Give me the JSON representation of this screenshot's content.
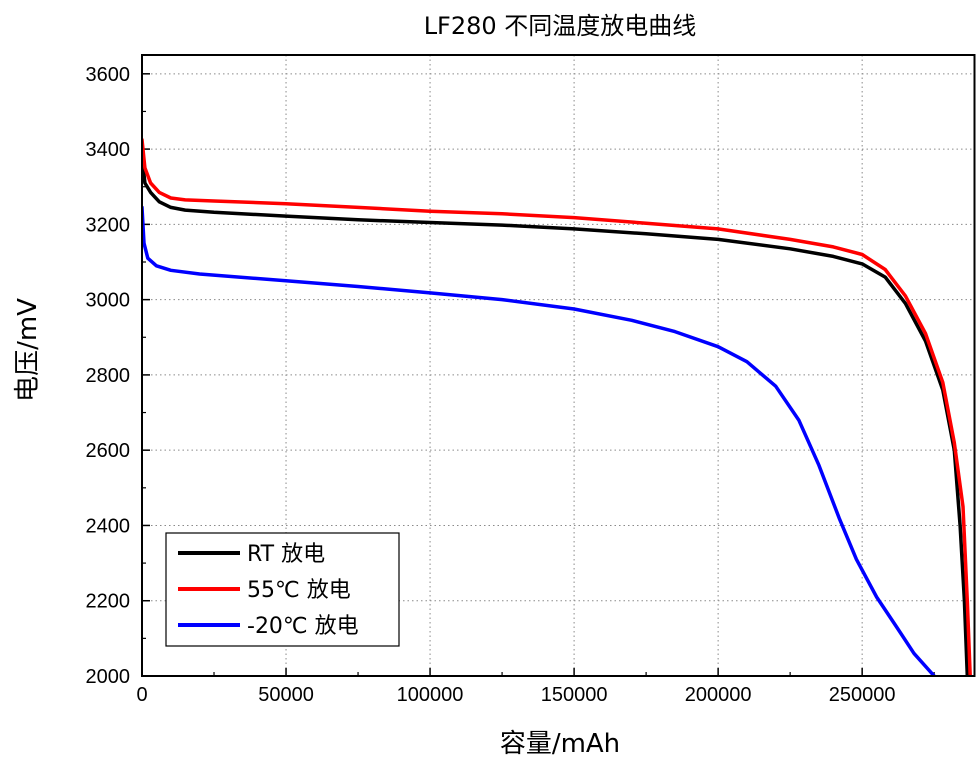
{
  "chart_data": {
    "type": "line",
    "title": "LF280 不同温度放电曲线",
    "xlabel": "容量/mAh",
    "ylabel": "电压/mV",
    "xlim": [
      0,
      289000
    ],
    "ylim": [
      2000,
      3650
    ],
    "xticks": [
      0,
      50000,
      100000,
      150000,
      200000,
      250000
    ],
    "yticks": [
      2000,
      2200,
      2400,
      2600,
      2800,
      3000,
      3200,
      3400,
      3600
    ],
    "grid": true,
    "legend_position": "bottom-left",
    "series": [
      {
        "name": "RT 放电",
        "color": "#000000",
        "points": [
          [
            0,
            3380
          ],
          [
            1000,
            3310
          ],
          [
            3000,
            3285
          ],
          [
            6000,
            3260
          ],
          [
            10000,
            3245
          ],
          [
            15000,
            3238
          ],
          [
            25000,
            3232
          ],
          [
            50000,
            3222
          ],
          [
            75000,
            3212
          ],
          [
            100000,
            3205
          ],
          [
            125000,
            3198
          ],
          [
            150000,
            3188
          ],
          [
            175000,
            3175
          ],
          [
            200000,
            3160
          ],
          [
            225000,
            3135
          ],
          [
            240000,
            3115
          ],
          [
            250000,
            3095
          ],
          [
            258000,
            3060
          ],
          [
            265000,
            2990
          ],
          [
            272000,
            2890
          ],
          [
            278000,
            2760
          ],
          [
            282000,
            2600
          ],
          [
            284000,
            2400
          ],
          [
            285500,
            2200
          ],
          [
            286500,
            2000
          ]
        ]
      },
      {
        "name": "55℃ 放电",
        "color": "#ff0000",
        "points": [
          [
            0,
            3425
          ],
          [
            1000,
            3350
          ],
          [
            3000,
            3310
          ],
          [
            6000,
            3285
          ],
          [
            10000,
            3270
          ],
          [
            15000,
            3265
          ],
          [
            25000,
            3262
          ],
          [
            50000,
            3255
          ],
          [
            75000,
            3245
          ],
          [
            100000,
            3235
          ],
          [
            125000,
            3228
          ],
          [
            150000,
            3218
          ],
          [
            175000,
            3203
          ],
          [
            200000,
            3188
          ],
          [
            225000,
            3160
          ],
          [
            240000,
            3140
          ],
          [
            250000,
            3120
          ],
          [
            258000,
            3080
          ],
          [
            265000,
            3010
          ],
          [
            272000,
            2910
          ],
          [
            278000,
            2780
          ],
          [
            282000,
            2620
          ],
          [
            285000,
            2450
          ],
          [
            286500,
            2200
          ],
          [
            287500,
            2000
          ]
        ]
      },
      {
        "name": "-20℃ 放电",
        "color": "#0000ff",
        "points": [
          [
            0,
            3245
          ],
          [
            700,
            3150
          ],
          [
            2000,
            3110
          ],
          [
            5000,
            3090
          ],
          [
            10000,
            3078
          ],
          [
            20000,
            3068
          ],
          [
            50000,
            3050
          ],
          [
            75000,
            3035
          ],
          [
            100000,
            3018
          ],
          [
            125000,
            3000
          ],
          [
            150000,
            2975
          ],
          [
            170000,
            2945
          ],
          [
            185000,
            2915
          ],
          [
            200000,
            2875
          ],
          [
            210000,
            2835
          ],
          [
            220000,
            2770
          ],
          [
            228000,
            2680
          ],
          [
            235000,
            2560
          ],
          [
            242000,
            2420
          ],
          [
            248000,
            2310
          ],
          [
            255000,
            2210
          ],
          [
            262000,
            2130
          ],
          [
            268000,
            2060
          ],
          [
            275000,
            2000
          ]
        ]
      }
    ]
  }
}
